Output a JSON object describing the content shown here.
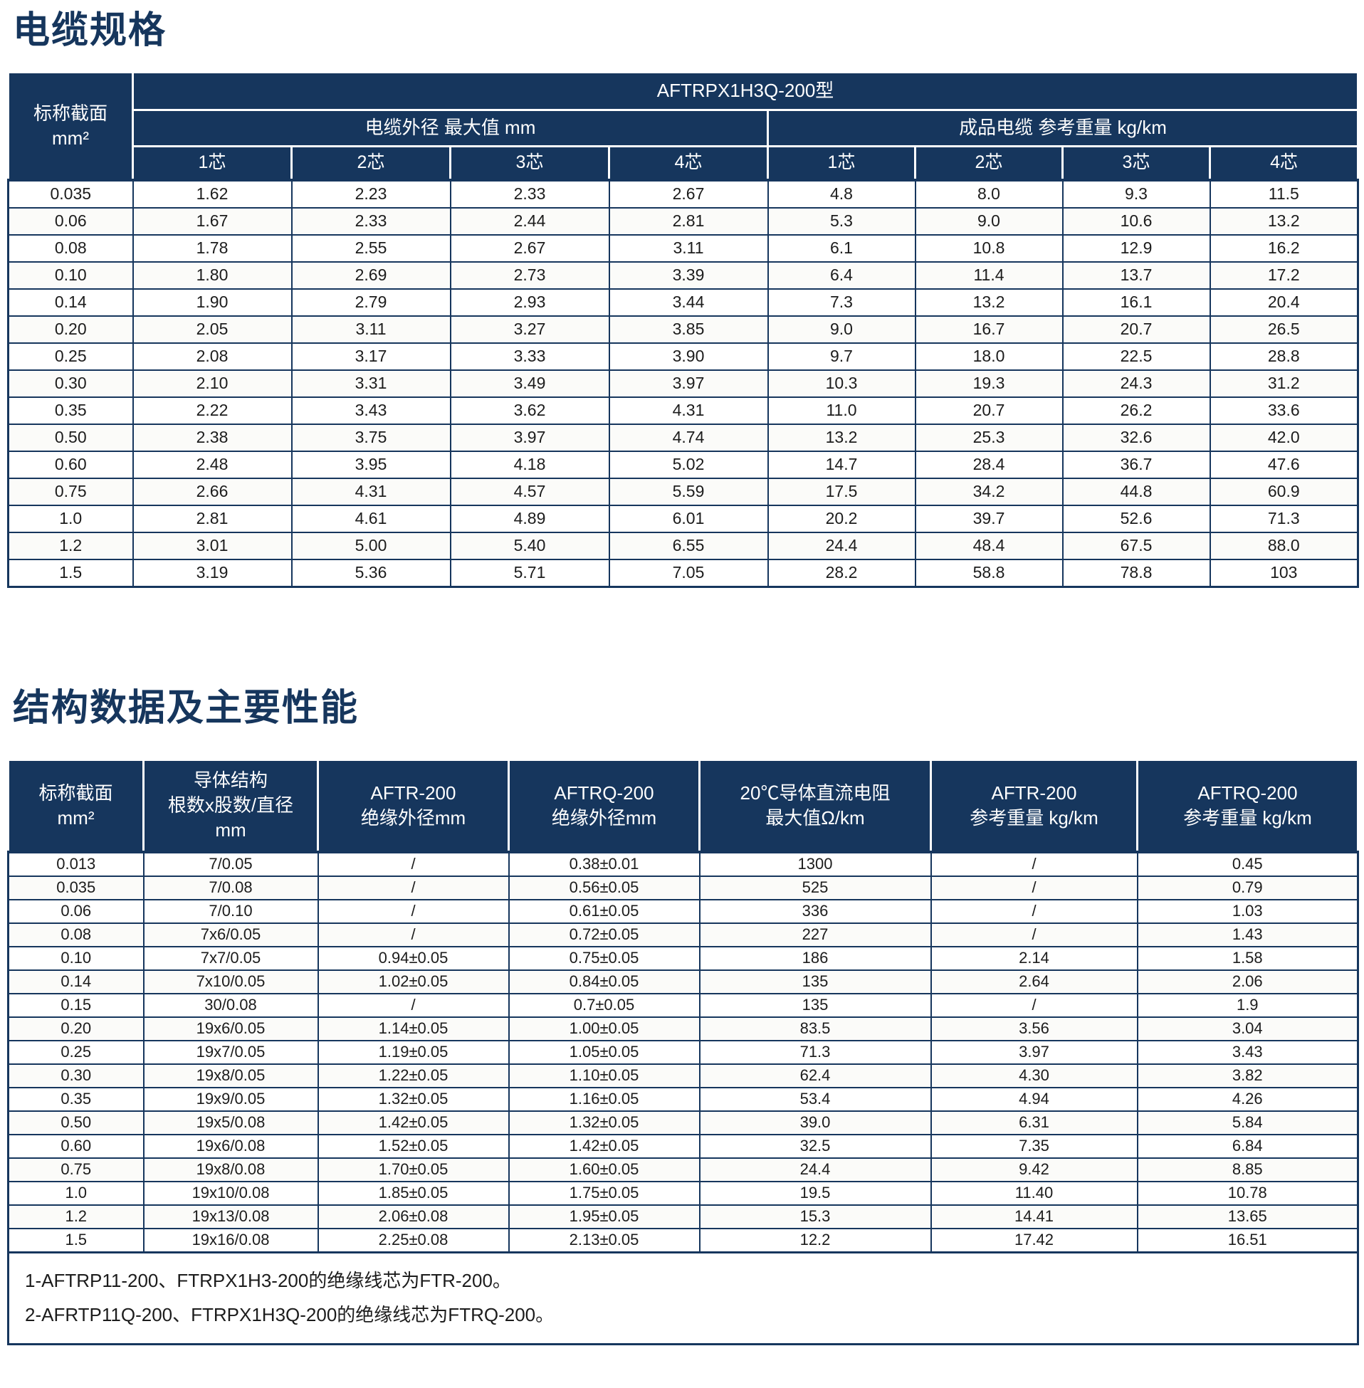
{
  "colors": {
    "header_bg": "#16365d",
    "header_text": "#ffffff",
    "title_text": "#16365d",
    "border": "#16365d",
    "body_text": "#1c1c1c"
  },
  "table1": {
    "title": "电缆规格",
    "model_header": "AFTRPX1H3Q-200型",
    "col_nominal": "标称截面",
    "col_nominal_unit": "mm²",
    "group1": "电缆外径  最大值  mm",
    "group2": "成品电缆  参考重量  kg/km",
    "subcols": [
      "1芯",
      "2芯",
      "3芯",
      "4芯",
      "1芯",
      "2芯",
      "3芯",
      "4芯"
    ],
    "rows": [
      [
        "0.035",
        "1.62",
        "2.23",
        "2.33",
        "2.67",
        "4.8",
        "8.0",
        "9.3",
        "11.5"
      ],
      [
        "0.06",
        "1.67",
        "2.33",
        "2.44",
        "2.81",
        "5.3",
        "9.0",
        "10.6",
        "13.2"
      ],
      [
        "0.08",
        "1.78",
        "2.55",
        "2.67",
        "3.11",
        "6.1",
        "10.8",
        "12.9",
        "16.2"
      ],
      [
        "0.10",
        "1.80",
        "2.69",
        "2.73",
        "3.39",
        "6.4",
        "11.4",
        "13.7",
        "17.2"
      ],
      [
        "0.14",
        "1.90",
        "2.79",
        "2.93",
        "3.44",
        "7.3",
        "13.2",
        "16.1",
        "20.4"
      ],
      [
        "0.20",
        "2.05",
        "3.11",
        "3.27",
        "3.85",
        "9.0",
        "16.7",
        "20.7",
        "26.5"
      ],
      [
        "0.25",
        "2.08",
        "3.17",
        "3.33",
        "3.90",
        "9.7",
        "18.0",
        "22.5",
        "28.8"
      ],
      [
        "0.30",
        "2.10",
        "3.31",
        "3.49",
        "3.97",
        "10.3",
        "19.3",
        "24.3",
        "31.2"
      ],
      [
        "0.35",
        "2.22",
        "3.43",
        "3.62",
        "4.31",
        "11.0",
        "20.7",
        "26.2",
        "33.6"
      ],
      [
        "0.50",
        "2.38",
        "3.75",
        "3.97",
        "4.74",
        "13.2",
        "25.3",
        "32.6",
        "42.0"
      ],
      [
        "0.60",
        "2.48",
        "3.95",
        "4.18",
        "5.02",
        "14.7",
        "28.4",
        "36.7",
        "47.6"
      ],
      [
        "0.75",
        "2.66",
        "4.31",
        "4.57",
        "5.59",
        "17.5",
        "34.2",
        "44.8",
        "60.9"
      ],
      [
        "1.0",
        "2.81",
        "4.61",
        "4.89",
        "6.01",
        "20.2",
        "39.7",
        "52.6",
        "71.3"
      ],
      [
        "1.2",
        "3.01",
        "5.00",
        "5.40",
        "6.55",
        "24.4",
        "48.4",
        "67.5",
        "88.0"
      ],
      [
        "1.5",
        "3.19",
        "5.36",
        "5.71",
        "7.05",
        "28.2",
        "58.8",
        "78.8",
        "103"
      ]
    ]
  },
  "table2": {
    "title": "结构数据及主要性能",
    "headers": [
      {
        "lines": [
          "标称截面",
          "mm²"
        ]
      },
      {
        "lines": [
          "导体结构",
          "根数x股数/直径",
          "mm"
        ]
      },
      {
        "lines": [
          "AFTR-200",
          "绝缘外径mm"
        ]
      },
      {
        "lines": [
          "AFTRQ-200",
          "绝缘外径mm"
        ]
      },
      {
        "lines": [
          "20℃导体直流电阻",
          "最大值Ω/km"
        ]
      },
      {
        "lines": [
          "AFTR-200",
          "参考重量 kg/km"
        ]
      },
      {
        "lines": [
          "AFTRQ-200",
          "参考重量 kg/km"
        ]
      }
    ],
    "rows": [
      [
        "0.013",
        "7/0.05",
        "/",
        "0.38±0.01",
        "1300",
        "/",
        "0.45"
      ],
      [
        "0.035",
        "7/0.08",
        "/",
        "0.56±0.05",
        "525",
        "/",
        "0.79"
      ],
      [
        "0.06",
        "7/0.10",
        "/",
        "0.61±0.05",
        "336",
        "/",
        "1.03"
      ],
      [
        "0.08",
        "7x6/0.05",
        "/",
        "0.72±0.05",
        "227",
        "/",
        "1.43"
      ],
      [
        "0.10",
        "7x7/0.05",
        "0.94±0.05",
        "0.75±0.05",
        "186",
        "2.14",
        "1.58"
      ],
      [
        "0.14",
        "7x10/0.05",
        "1.02±0.05",
        "0.84±0.05",
        "135",
        "2.64",
        "2.06"
      ],
      [
        "0.15",
        "30/0.08",
        "/",
        "0.7±0.05",
        "135",
        "/",
        "1.9"
      ],
      [
        "0.20",
        "19x6/0.05",
        "1.14±0.05",
        "1.00±0.05",
        "83.5",
        "3.56",
        "3.04"
      ],
      [
        "0.25",
        "19x7/0.05",
        "1.19±0.05",
        "1.05±0.05",
        "71.3",
        "3.97",
        "3.43"
      ],
      [
        "0.30",
        "19x8/0.05",
        "1.22±0.05",
        "1.10±0.05",
        "62.4",
        "4.30",
        "3.82"
      ],
      [
        "0.35",
        "19x9/0.05",
        "1.32±0.05",
        "1.16±0.05",
        "53.4",
        "4.94",
        "4.26"
      ],
      [
        "0.50",
        "19x5/0.08",
        "1.42±0.05",
        "1.32±0.05",
        "39.0",
        "6.31",
        "5.84"
      ],
      [
        "0.60",
        "19x6/0.08",
        "1.52±0.05",
        "1.42±0.05",
        "32.5",
        "7.35",
        "6.84"
      ],
      [
        "0.75",
        "19x8/0.08",
        "1.70±0.05",
        "1.60±0.05",
        "24.4",
        "9.42",
        "8.85"
      ],
      [
        "1.0",
        "19x10/0.08",
        "1.85±0.05",
        "1.75±0.05",
        "19.5",
        "11.40",
        "10.78"
      ],
      [
        "1.2",
        "19x13/0.08",
        "2.06±0.08",
        "1.95±0.05",
        "15.3",
        "14.41",
        "13.65"
      ],
      [
        "1.5",
        "19x16/0.08",
        "2.25±0.08",
        "2.13±0.05",
        "12.2",
        "17.42",
        "16.51"
      ]
    ],
    "footnotes": [
      "1-AFTRP11-200、FTRPX1H3-200的绝缘线芯为FTR-200。",
      "2-AFRTP11Q-200、FTRPX1H3Q-200的绝缘线芯为FTRQ-200。"
    ]
  }
}
